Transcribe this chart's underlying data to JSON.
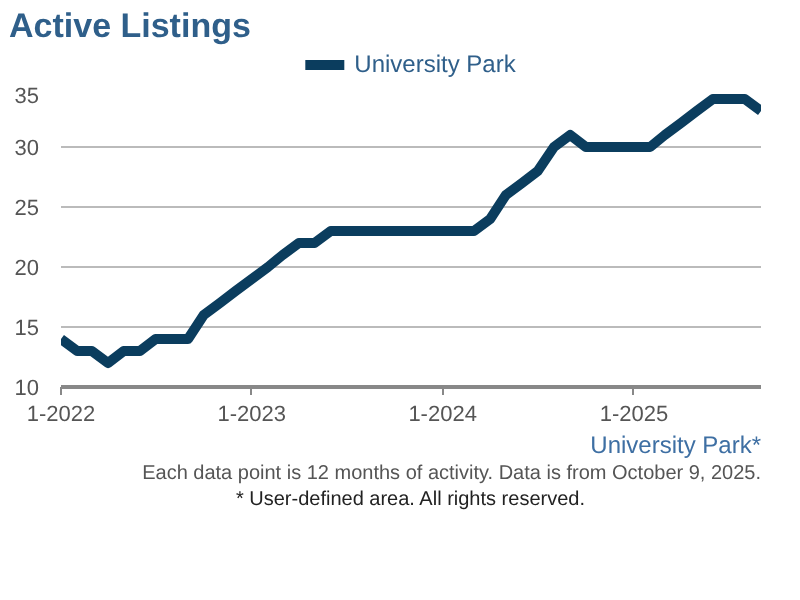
{
  "chart_data": {
    "type": "line",
    "title": "Active Listings",
    "x": [
      "2022-01",
      "2022-02",
      "2022-03",
      "2022-04",
      "2022-05",
      "2022-06",
      "2022-07",
      "2022-08",
      "2022-09",
      "2022-10",
      "2022-11",
      "2022-12",
      "2023-01",
      "2023-02",
      "2023-03",
      "2023-04",
      "2023-05",
      "2023-06",
      "2023-07",
      "2023-08",
      "2023-09",
      "2023-10",
      "2023-11",
      "2023-12",
      "2024-01",
      "2024-02",
      "2024-03",
      "2024-04",
      "2024-05",
      "2024-06",
      "2024-07",
      "2024-08",
      "2024-09",
      "2024-10",
      "2024-11",
      "2024-12",
      "2025-01",
      "2025-02",
      "2025-03",
      "2025-04",
      "2025-05",
      "2025-06",
      "2025-07",
      "2025-08",
      "2025-09"
    ],
    "series": [
      {
        "name": "University Park",
        "color": "#0b3d5e",
        "values": [
          14,
          13,
          13,
          12,
          13,
          13,
          14,
          14,
          14,
          16,
          17,
          18,
          19,
          20,
          21,
          22,
          22,
          23,
          23,
          23,
          23,
          23,
          23,
          23,
          23,
          23,
          23,
          24,
          26,
          27,
          28,
          30,
          31,
          30,
          30,
          30,
          30,
          30,
          31,
          32,
          33,
          34,
          34,
          34,
          33
        ]
      }
    ],
    "xlim": [
      "2022-01",
      "2025-09"
    ],
    "xticks": [
      {
        "value": "2022-01",
        "label": "1-2022"
      },
      {
        "value": "2023-01",
        "label": "1-2023"
      },
      {
        "value": "2024-01",
        "label": "1-2024"
      },
      {
        "value": "2025-01",
        "label": "1-2025"
      }
    ],
    "ylim": [
      10,
      35
    ],
    "yticks": [
      10,
      15,
      20,
      25,
      30,
      35
    ],
    "grid": "y",
    "legend": "top",
    "marker": "none",
    "line_style": "solid",
    "annotations": [
      "University Park*",
      "Each data point is 12 months of activity. Data is from October 9, 2025.",
      "* User-defined area. All rights reserved."
    ]
  }
}
